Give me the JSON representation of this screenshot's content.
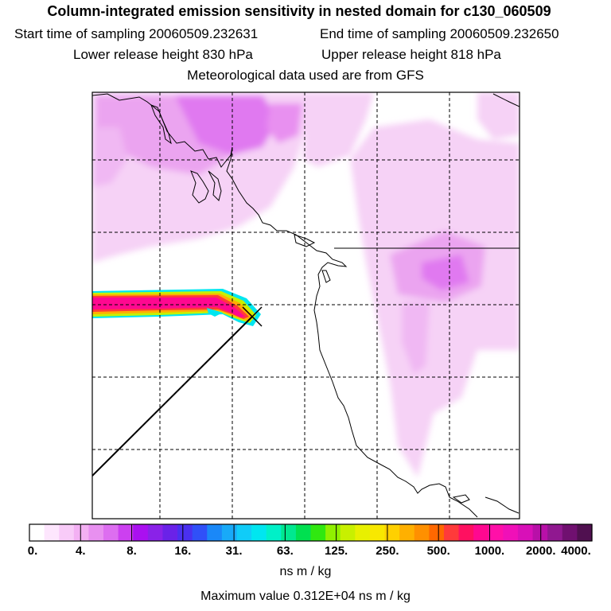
{
  "header": {
    "title": "Column-integrated emission sensitivity in nested domain for c130_060509",
    "start_label": "Start time of sampling 20060509.232631",
    "end_label": "End time of sampling 20060509.232650",
    "lower_label": "Lower release height  830 hPa",
    "upper_label": "Upper release height  818 hPa",
    "met_label": "Meteorological data used are from GFS"
  },
  "colorbar": {
    "tick_labels": [
      "0.",
      "4.",
      "8.",
      "16.",
      "31.",
      "63.",
      "125.",
      "250.",
      "500.",
      "1000.",
      "2000.",
      "4000."
    ],
    "colors": [
      "#ffffff",
      "#fde6fd",
      "#f8cbf8",
      "#f3b0f3",
      "#e890f0",
      "#dd6ef0",
      "#cc40f0",
      "#aa10f0",
      "#8a22e8",
      "#6a22e8",
      "#4a30f0",
      "#3050f8",
      "#1a88f8",
      "#18aaf8",
      "#10ccf8",
      "#00e6f0",
      "#00f0c8",
      "#00e890",
      "#00e050",
      "#30e810",
      "#90f000",
      "#c8f000",
      "#e8f000",
      "#f8e800",
      "#ffd000",
      "#ffb000",
      "#ff9000",
      "#ff6800",
      "#ff3a3a",
      "#ff1060",
      "#ff0890",
      "#ff10a8",
      "#f010b8",
      "#d810b8",
      "#b810a8",
      "#901890",
      "#701070",
      "#501050"
    ]
  },
  "units_label": "ns m / kg",
  "max_label": "Maximum value  0.312E+04 ns m / kg"
}
